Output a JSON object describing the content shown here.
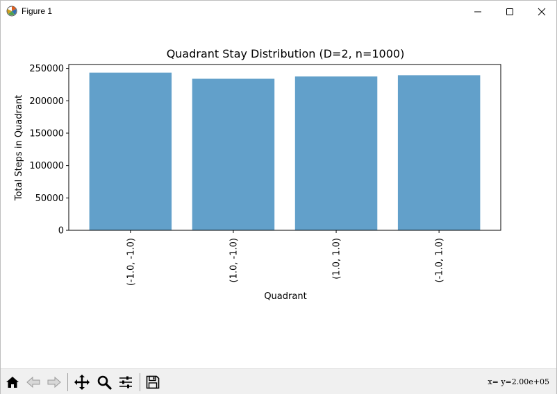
{
  "window": {
    "title": "Figure 1",
    "icons": {
      "app": "matplotlib-icon",
      "minimize": "minimize-icon",
      "maximize": "maximize-icon",
      "close": "close-icon"
    }
  },
  "toolbar": {
    "buttons": [
      {
        "name": "home-button",
        "icon": "home-icon"
      },
      {
        "name": "back-button",
        "icon": "arrow-left-icon"
      },
      {
        "name": "forward-button",
        "icon": "arrow-right-icon"
      },
      {
        "name": "pan-button",
        "icon": "move-icon"
      },
      {
        "name": "zoom-button",
        "icon": "zoom-icon"
      },
      {
        "name": "configure-subplots-button",
        "icon": "sliders-icon"
      },
      {
        "name": "save-button",
        "icon": "save-icon"
      }
    ],
    "coords": "x= y=2.00e+05"
  },
  "chart_data": {
    "type": "bar",
    "title": "Quadrant Stay Distribution (D=2, n=1000)",
    "xlabel": "Quadrant",
    "ylabel": "Total Steps in Quadrant",
    "categories": [
      "(-1.0, -1.0)",
      "(1.0, -1.0)",
      "(1.0, 1.0)",
      "(-1.0, 1.0)"
    ],
    "values": [
      243500,
      234000,
      237500,
      239500
    ],
    "ylim": [
      0,
      256000
    ],
    "yticks": [
      0,
      50000,
      100000,
      150000,
      200000,
      250000
    ],
    "ytick_labels": [
      "0",
      "50000",
      "100000",
      "150000",
      "200000",
      "250000"
    ],
    "bar_color": "#62a0ca",
    "grid": false,
    "tick_label_rotation": "vertical"
  }
}
